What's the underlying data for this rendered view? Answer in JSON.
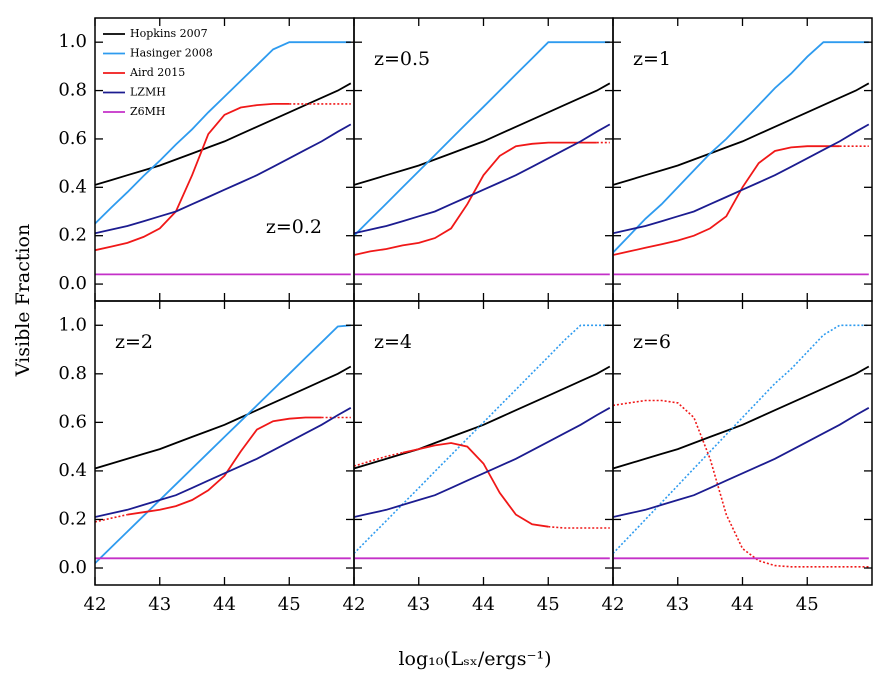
{
  "figure": {
    "xlabel": "log₁₀(Lₛₓ/ergs⁻¹)",
    "ylabel": "Visible Fraction"
  },
  "chart_data": [
    {
      "type": "line",
      "label": "z=0.2",
      "label_corner": "lower right",
      "legend": "upper left",
      "xlim": [
        42,
        46
      ],
      "ylim": [
        -0.07,
        1.1
      ],
      "yticks": [
        {
          "value": 0,
          "label": "0.0"
        },
        0.2,
        0.4,
        0.6,
        0.8,
        {
          "value": 1,
          "label": "1.0"
        }
      ],
      "x": [
        42,
        42.25,
        42.5,
        42.75,
        43,
        43.25,
        43.5,
        43.75,
        44,
        44.25,
        44.5,
        44.75,
        45,
        45.25,
        45.5,
        45.75,
        45.95
      ],
      "series": [
        {
          "name": "Hopkins 2007",
          "color": "#000000",
          "values": [
            0.41,
            0.43,
            0.45,
            0.47,
            0.49,
            0.515,
            0.54,
            0.565,
            0.59,
            0.62,
            0.65,
            0.68,
            0.71,
            0.74,
            0.77,
            0.8,
            0.83
          ]
        },
        {
          "name": "Hasinger 2008",
          "color": "#2e9bef",
          "values": [
            0.25,
            0.316,
            0.38,
            0.447,
            0.51,
            0.577,
            0.64,
            0.71,
            0.775,
            0.84,
            0.905,
            0.97,
            1,
            1,
            1,
            1,
            1
          ]
        },
        {
          "name": "Aird 2015",
          "color": "#f01818",
          "solid_range": [
            42,
            44.9
          ],
          "values": [
            0.14,
            0.155,
            0.17,
            0.195,
            0.23,
            0.3,
            0.45,
            0.62,
            0.7,
            0.73,
            0.74,
            0.745,
            0.745,
            0.745,
            0.745,
            0.745,
            0.745
          ]
        },
        {
          "name": "LZMH",
          "color": "#1c1c90",
          "values": [
            0.21,
            0.225,
            0.24,
            0.26,
            0.28,
            0.3,
            0.33,
            0.36,
            0.39,
            0.42,
            0.45,
            0.485,
            0.52,
            0.555,
            0.59,
            0.63,
            0.66
          ]
        },
        {
          "name": "Z6MH",
          "color": "#c430c8",
          "values": [
            0.04,
            0.04,
            0.04,
            0.04,
            0.04,
            0.04,
            0.04,
            0.04,
            0.04,
            0.04,
            0.04,
            0.04,
            0.04,
            0.04,
            0.04,
            0.04,
            0.04
          ]
        }
      ]
    },
    {
      "type": "line",
      "label": "z=0.5",
      "label_corner": "upper left",
      "xlim": [
        42,
        46
      ],
      "ylim": [
        -0.07,
        1.1
      ],
      "x": [
        42,
        42.25,
        42.5,
        42.75,
        43,
        43.25,
        43.5,
        43.75,
        44,
        44.25,
        44.5,
        44.75,
        45,
        45.25,
        45.5,
        45.75,
        45.95
      ],
      "series": [
        {
          "color": "#000000",
          "values": [
            0.41,
            0.43,
            0.45,
            0.47,
            0.49,
            0.515,
            0.54,
            0.565,
            0.59,
            0.62,
            0.65,
            0.68,
            0.71,
            0.74,
            0.77,
            0.8,
            0.83
          ]
        },
        {
          "color": "#2e9bef",
          "values": [
            0.2,
            0.267,
            0.333,
            0.4,
            0.467,
            0.533,
            0.6,
            0.667,
            0.733,
            0.8,
            0.867,
            0.933,
            1,
            1,
            1,
            1,
            1
          ]
        },
        {
          "color": "#f01818",
          "solid_range": [
            42,
            45.7
          ],
          "values": [
            0.12,
            0.135,
            0.145,
            0.16,
            0.17,
            0.19,
            0.23,
            0.33,
            0.45,
            0.53,
            0.57,
            0.58,
            0.585,
            0.585,
            0.585,
            0.585,
            0.585
          ]
        },
        {
          "color": "#1c1c90",
          "values": [
            0.21,
            0.225,
            0.24,
            0.26,
            0.28,
            0.3,
            0.33,
            0.36,
            0.39,
            0.42,
            0.45,
            0.485,
            0.52,
            0.555,
            0.59,
            0.63,
            0.66
          ]
        },
        {
          "color": "#c430c8",
          "values": [
            0.04,
            0.04,
            0.04,
            0.04,
            0.04,
            0.04,
            0.04,
            0.04,
            0.04,
            0.04,
            0.04,
            0.04,
            0.04,
            0.04,
            0.04,
            0.04,
            0.04
          ]
        }
      ]
    },
    {
      "type": "line",
      "label": "z=1",
      "label_corner": "upper left",
      "xlim": [
        42,
        46
      ],
      "ylim": [
        -0.07,
        1.1
      ],
      "x": [
        42,
        42.25,
        42.5,
        42.75,
        43,
        43.25,
        43.5,
        43.75,
        44,
        44.25,
        44.5,
        44.75,
        45,
        45.25,
        45.5,
        45.75,
        45.95
      ],
      "series": [
        {
          "color": "#000000",
          "values": [
            0.41,
            0.43,
            0.45,
            0.47,
            0.49,
            0.515,
            0.54,
            0.565,
            0.59,
            0.62,
            0.65,
            0.68,
            0.71,
            0.74,
            0.77,
            0.8,
            0.83
          ]
        },
        {
          "color": "#2e9bef",
          "values": [
            0.13,
            0.2,
            0.27,
            0.33,
            0.4,
            0.47,
            0.54,
            0.6,
            0.67,
            0.74,
            0.81,
            0.87,
            0.94,
            1,
            1,
            1,
            1
          ]
        },
        {
          "color": "#f01818",
          "solid_range": [
            42,
            45.5
          ],
          "values": [
            0.12,
            0.135,
            0.15,
            0.165,
            0.18,
            0.2,
            0.23,
            0.28,
            0.4,
            0.5,
            0.55,
            0.565,
            0.57,
            0.57,
            0.57,
            0.57,
            0.57
          ]
        },
        {
          "color": "#1c1c90",
          "values": [
            0.21,
            0.225,
            0.24,
            0.26,
            0.28,
            0.3,
            0.33,
            0.36,
            0.39,
            0.42,
            0.45,
            0.485,
            0.52,
            0.555,
            0.59,
            0.63,
            0.66
          ]
        },
        {
          "color": "#c430c8",
          "values": [
            0.04,
            0.04,
            0.04,
            0.04,
            0.04,
            0.04,
            0.04,
            0.04,
            0.04,
            0.04,
            0.04,
            0.04,
            0.04,
            0.04,
            0.04,
            0.04,
            0.04
          ]
        }
      ]
    },
    {
      "type": "line",
      "label": "z=2",
      "label_corner": "upper left",
      "xlim": [
        42,
        46
      ],
      "ylim": [
        -0.07,
        1.1
      ],
      "yticks": [
        {
          "value": 0,
          "label": "0.0"
        },
        0.2,
        0.4,
        0.6,
        0.8,
        {
          "value": 1,
          "label": "1.0"
        }
      ],
      "xticks": [
        42,
        43,
        44,
        45
      ],
      "x": [
        42,
        42.25,
        42.5,
        42.75,
        43,
        43.25,
        43.5,
        43.75,
        44,
        44.25,
        44.5,
        44.75,
        45,
        45.25,
        45.5,
        45.75,
        45.95
      ],
      "series": [
        {
          "color": "#000000",
          "values": [
            0.41,
            0.43,
            0.45,
            0.47,
            0.49,
            0.515,
            0.54,
            0.565,
            0.59,
            0.62,
            0.65,
            0.68,
            0.71,
            0.74,
            0.77,
            0.8,
            0.83
          ]
        },
        {
          "color": "#2e9bef",
          "values": [
            0.02,
            0.085,
            0.15,
            0.215,
            0.28,
            0.345,
            0.41,
            0.475,
            0.54,
            0.605,
            0.67,
            0.735,
            0.8,
            0.865,
            0.93,
            0.995,
            1
          ]
        },
        {
          "color": "#f01818",
          "solid_range": [
            42.5,
            45.6
          ],
          "values": [
            0.19,
            0.205,
            0.22,
            0.23,
            0.24,
            0.255,
            0.28,
            0.32,
            0.38,
            0.48,
            0.57,
            0.605,
            0.615,
            0.62,
            0.62,
            0.62,
            0.62
          ]
        },
        {
          "color": "#1c1c90",
          "values": [
            0.21,
            0.225,
            0.24,
            0.26,
            0.28,
            0.3,
            0.33,
            0.36,
            0.39,
            0.42,
            0.45,
            0.485,
            0.52,
            0.555,
            0.59,
            0.63,
            0.66
          ]
        },
        {
          "color": "#c430c8",
          "values": [
            0.04,
            0.04,
            0.04,
            0.04,
            0.04,
            0.04,
            0.04,
            0.04,
            0.04,
            0.04,
            0.04,
            0.04,
            0.04,
            0.04,
            0.04,
            0.04,
            0.04
          ]
        }
      ]
    },
    {
      "type": "line",
      "label": "z=4",
      "label_corner": "upper left",
      "xlim": [
        42,
        46
      ],
      "ylim": [
        -0.07,
        1.1
      ],
      "xticks": [
        42,
        43,
        44,
        45
      ],
      "x": [
        42,
        42.25,
        42.5,
        42.75,
        43,
        43.25,
        43.5,
        43.75,
        44,
        44.25,
        44.5,
        44.75,
        45,
        45.25,
        45.5,
        45.75,
        45.95
      ],
      "series": [
        {
          "color": "#000000",
          "values": [
            0.41,
            0.43,
            0.45,
            0.47,
            0.49,
            0.515,
            0.54,
            0.565,
            0.59,
            0.62,
            0.65,
            0.68,
            0.71,
            0.74,
            0.77,
            0.8,
            0.83
          ]
        },
        {
          "color": "#2e9bef",
          "line_style": "dotted",
          "values": [
            0.06,
            0.128,
            0.195,
            0.263,
            0.33,
            0.398,
            0.465,
            0.533,
            0.6,
            0.668,
            0.735,
            0.803,
            0.87,
            0.938,
            1,
            1,
            1
          ]
        },
        {
          "color": "#f01818",
          "solid_range": [
            42.7,
            45.0
          ],
          "values": [
            0.42,
            0.44,
            0.46,
            0.475,
            0.49,
            0.505,
            0.515,
            0.5,
            0.43,
            0.31,
            0.22,
            0.18,
            0.17,
            0.165,
            0.165,
            0.165,
            0.165
          ]
        },
        {
          "color": "#1c1c90",
          "values": [
            0.21,
            0.225,
            0.24,
            0.26,
            0.28,
            0.3,
            0.33,
            0.36,
            0.39,
            0.42,
            0.45,
            0.485,
            0.52,
            0.555,
            0.59,
            0.63,
            0.66
          ]
        },
        {
          "color": "#c430c8",
          "values": [
            0.04,
            0.04,
            0.04,
            0.04,
            0.04,
            0.04,
            0.04,
            0.04,
            0.04,
            0.04,
            0.04,
            0.04,
            0.04,
            0.04,
            0.04,
            0.04,
            0.04
          ]
        }
      ]
    },
    {
      "type": "line",
      "label": "z=6",
      "label_corner": "upper left",
      "xlim": [
        42,
        46
      ],
      "ylim": [
        -0.07,
        1.1
      ],
      "xticks": [
        42,
        43,
        44,
        45
      ],
      "x": [
        42,
        42.25,
        42.5,
        42.75,
        43,
        43.25,
        43.5,
        43.75,
        44,
        44.25,
        44.5,
        44.75,
        45,
        45.25,
        45.5,
        45.75,
        45.95
      ],
      "series": [
        {
          "color": "#000000",
          "values": [
            0.41,
            0.43,
            0.45,
            0.47,
            0.49,
            0.515,
            0.54,
            0.565,
            0.59,
            0.62,
            0.65,
            0.68,
            0.71,
            0.74,
            0.77,
            0.8,
            0.83
          ]
        },
        {
          "color": "#2e9bef",
          "line_style": "dotted",
          "values": [
            0.06,
            0.13,
            0.2,
            0.27,
            0.34,
            0.41,
            0.48,
            0.55,
            0.62,
            0.69,
            0.76,
            0.82,
            0.89,
            0.96,
            1,
            1,
            1
          ]
        },
        {
          "color": "#f01818",
          "line_style": "dotted",
          "values": [
            0.67,
            0.68,
            0.69,
            0.69,
            0.68,
            0.62,
            0.45,
            0.22,
            0.08,
            0.03,
            0.01,
            0.005,
            0.005,
            0.005,
            0.005,
            0.005,
            0.005
          ]
        },
        {
          "color": "#1c1c90",
          "values": [
            0.21,
            0.225,
            0.24,
            0.26,
            0.28,
            0.3,
            0.33,
            0.36,
            0.39,
            0.42,
            0.45,
            0.485,
            0.52,
            0.555,
            0.59,
            0.63,
            0.66
          ]
        },
        {
          "color": "#c430c8",
          "values": [
            0.04,
            0.04,
            0.04,
            0.04,
            0.04,
            0.04,
            0.04,
            0.04,
            0.04,
            0.04,
            0.04,
            0.04,
            0.04,
            0.04,
            0.04,
            0.04,
            0.04
          ]
        }
      ]
    }
  ]
}
